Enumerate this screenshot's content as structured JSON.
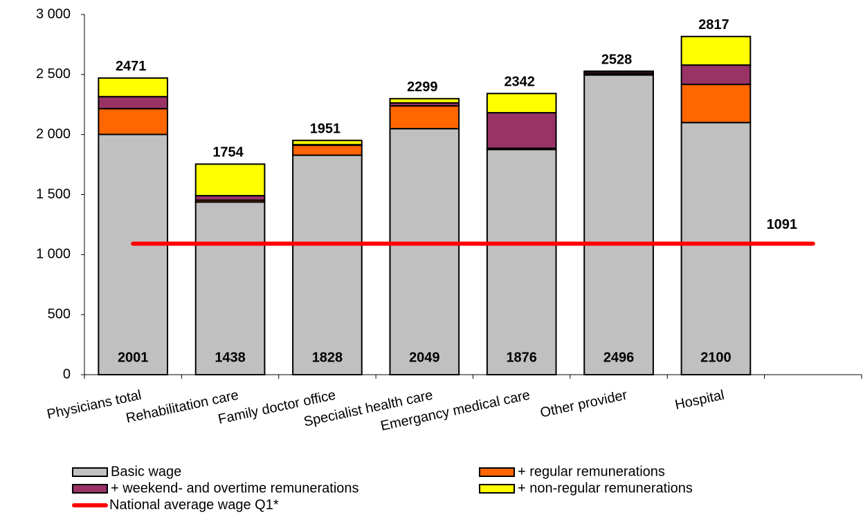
{
  "chart_data": {
    "type": "stacked_bar",
    "categories": [
      "Physicians total",
      "Rehabilitation care",
      "Family doctor office",
      "Specialist health care",
      "Emergancy medical care",
      "Other provider",
      "Hospital",
      null
    ],
    "series": [
      {
        "name": "Basic wage",
        "color": "#c0c0c0",
        "values": [
          2001,
          1438,
          1828,
          2049,
          1876,
          2496,
          2100,
          null
        ]
      },
      {
        "name": "+ regular remunerations",
        "color": "#ff6600",
        "values": [
          215,
          15,
          83,
          190,
          10,
          10,
          318,
          null
        ]
      },
      {
        "name": "+ weekend- and overtime remunerations",
        "color": "#993366",
        "values": [
          100,
          38,
          5,
          25,
          296,
          15,
          161,
          null
        ]
      },
      {
        "name": "+ non-regular remunerations",
        "color": "#ffff00",
        "values": [
          155,
          263,
          35,
          35,
          160,
          7,
          238,
          null
        ]
      }
    ],
    "totals": [
      2471,
      1754,
      1951,
      2299,
      2342,
      2528,
      2817,
      null
    ],
    "reference_line": {
      "name": "National average wage Q1*",
      "color": "#ff0000",
      "value": 1091
    },
    "ylim": [
      0,
      3000
    ],
    "yticks": [
      0,
      500,
      {
        "value": 1000,
        "label": "1 000"
      },
      {
        "value": 1500,
        "label": "1 500"
      },
      {
        "value": 2000,
        "label": "2 000"
      },
      {
        "value": 2500,
        "label": "2 500"
      },
      {
        "value": 3000,
        "label": "3 000"
      }
    ],
    "grid": false
  }
}
